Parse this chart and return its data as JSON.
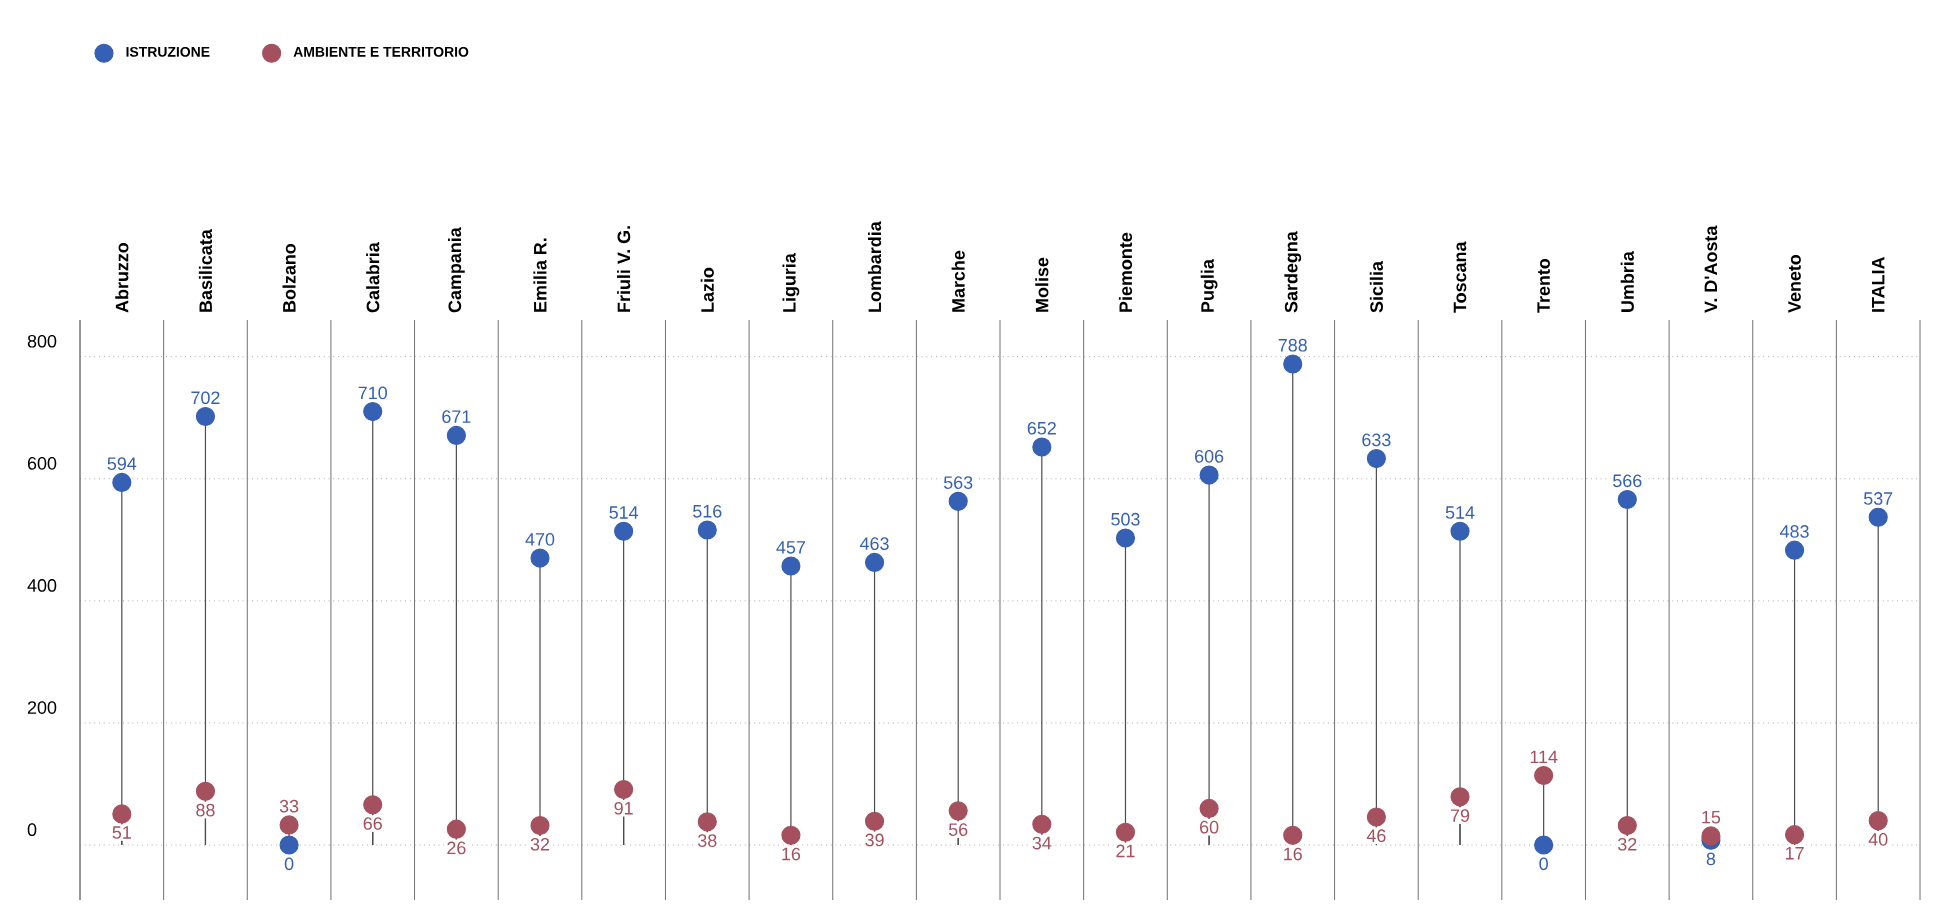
{
  "chart_data": {
    "type": "lollipop",
    "categories": [
      "Abruzzo",
      "Basilicata",
      "Bolzano",
      "Calabria",
      "Campania",
      "Emilia R.",
      "Friuli V. G.",
      "Lazio",
      "Liguria",
      "Lombardia",
      "Marche",
      "Molise",
      "Piemonte",
      "Puglia",
      "Sardegna",
      "Sicilia",
      "Toscana",
      "Trento",
      "Umbria",
      "V. D'Aosta",
      "Veneto",
      "ITALIA"
    ],
    "series": [
      {
        "name": "ISTRUZIONE",
        "color": "#3560b3",
        "values": [
          594,
          702,
          0,
          710,
          671,
          470,
          514,
          516,
          457,
          463,
          563,
          652,
          503,
          606,
          788,
          633,
          514,
          0,
          566,
          8,
          483,
          537
        ]
      },
      {
        "name": "AMBIENTE E TERRITORIO",
        "color": "#a5505e",
        "values": [
          51,
          88,
          33,
          66,
          26,
          32,
          91,
          38,
          16,
          39,
          56,
          34,
          21,
          60,
          16,
          46,
          79,
          114,
          32,
          15,
          17,
          40
        ]
      }
    ],
    "ylim": [
      -90,
      860
    ],
    "yticks": [
      0,
      200,
      400,
      600,
      800
    ],
    "grid": true,
    "legend": "top left",
    "data_labels": true,
    "marker": "circle"
  }
}
